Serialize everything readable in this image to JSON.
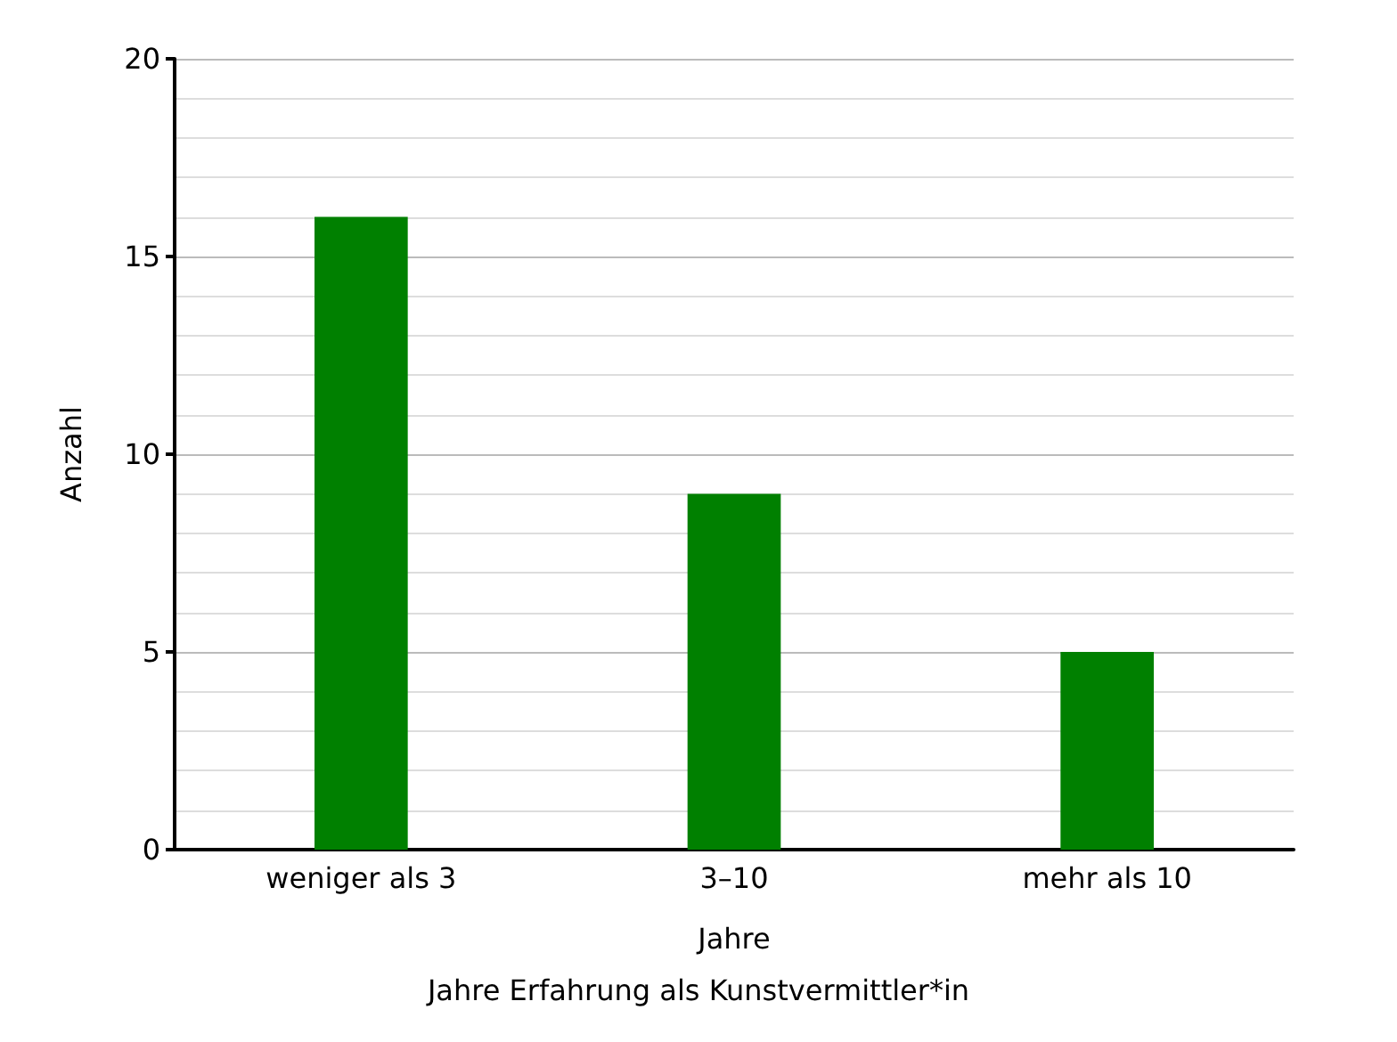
{
  "chart_data": {
    "type": "bar",
    "xlabel": "Jahre",
    "ylabel": "Anzahl",
    "annotations": [
      "Jahre Erfahrung als Kunstvermittler*in"
    ],
    "categories": [
      "weniger als 3",
      "3–10",
      "mehr als 10"
    ],
    "values": [
      16,
      9,
      5
    ],
    "color": "#008000",
    "ylim": [
      0,
      20
    ],
    "yticks": [
      0,
      5,
      10,
      15,
      20
    ],
    "grid": "y"
  }
}
